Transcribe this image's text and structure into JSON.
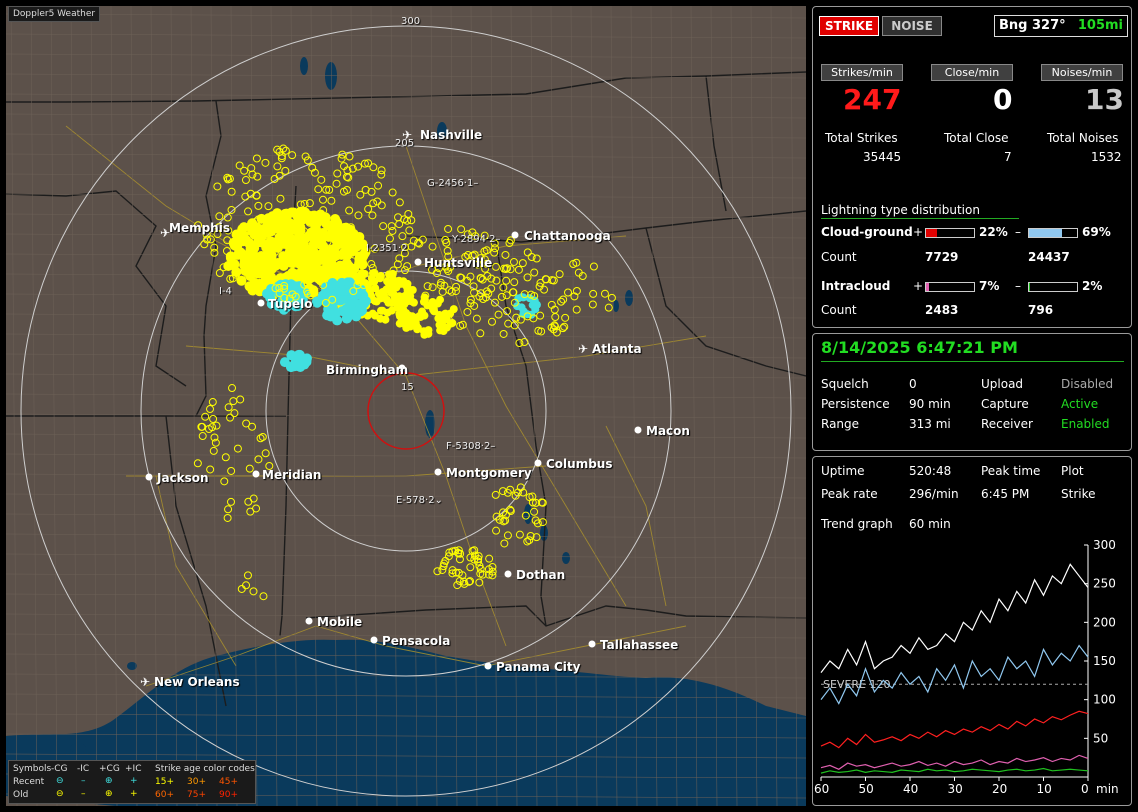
{
  "map": {
    "title": "Doppler5 Weather",
    "ring_labels": {
      "r300": "300",
      "r205": "205",
      "r15": "15"
    },
    "cities": [
      {
        "name": "Nashville",
        "icon": "airport-icon"
      },
      {
        "name": "Memphis",
        "icon": "airport-icon"
      },
      {
        "name": "Chattanooga",
        "icon": "city-dot"
      },
      {
        "name": "Huntsville",
        "icon": "city-dot"
      },
      {
        "name": "Tupelo",
        "icon": "city-dot"
      },
      {
        "name": "Atlanta",
        "icon": "airport-icon"
      },
      {
        "name": "Birmingham",
        "icon": "city-dot"
      },
      {
        "name": "Macon",
        "icon": "city-dot"
      },
      {
        "name": "Jackson",
        "icon": "city-dot"
      },
      {
        "name": "Meridian",
        "icon": "city-dot"
      },
      {
        "name": "Montgomery",
        "icon": "city-dot"
      },
      {
        "name": "Columbus",
        "icon": "city-dot"
      },
      {
        "name": "Dothan",
        "icon": "city-dot"
      },
      {
        "name": "Mobile",
        "icon": "city-dot"
      },
      {
        "name": "Pensacola",
        "icon": "city-dot"
      },
      {
        "name": "Tallahassee",
        "icon": "city-dot"
      },
      {
        "name": "Panama City",
        "icon": "city-dot"
      },
      {
        "name": "New Orleans",
        "icon": "airport-icon"
      }
    ],
    "bearing_labels": [
      "G-2456·1–",
      "Y-2894·2–",
      "F-5308·2–",
      "E-578·2⌄",
      "I-2351·2",
      "I-4"
    ],
    "legend": {
      "symbols": "Symbols",
      "minus_cg": "-CG",
      "minus_ic": "-IC",
      "plus_cg": "+CG",
      "plus_ic": "+IC",
      "codes": "Strike age color codes",
      "recent": "Recent",
      "old": "Old",
      "recent_ages": [
        "15+",
        "30+",
        "45+"
      ],
      "old_ages": [
        "60+",
        "75+",
        "90+"
      ],
      "age_colors": [
        "#ffff00",
        "#ff9900",
        "#ff5500",
        "#ff6600",
        "#ff4400",
        "#ff2200"
      ]
    },
    "colors": {
      "land": "#5c514a",
      "water": "#0a3a5c",
      "strike": "#ffff00",
      "cloud": "#40e0e0",
      "ring": "#cfcfcf",
      "close_ring": "#d01010"
    }
  },
  "status": {
    "strike_button": "STRIKE",
    "noise_button": "NOISE",
    "bearing": "Bng 327°",
    "distance": "105mi",
    "strikes_per_min_label": "Strikes/min",
    "close_per_min_label": "Close/min",
    "noises_per_min_label": "Noises/min",
    "strikes_per_min": "247",
    "close_per_min": "0",
    "noises_per_min": "13",
    "total_strikes_label": "Total Strikes",
    "total_close_label": "Total Close",
    "total_noises_label": "Total Noises",
    "total_strikes": "35445",
    "total_close": "7",
    "total_noises": "1532"
  },
  "distribution": {
    "title": "Lightning type distribution",
    "cloud_ground_label": "Cloud-ground",
    "intracloud_label": "Intracloud",
    "count_label": "Count",
    "plus_sign": "+",
    "minus_sign": "–",
    "cg_pos_pct": "22%",
    "cg_neg_pct": "69%",
    "cg_pos_count": "7729",
    "cg_neg_count": "24437",
    "ic_pos_pct": "7%",
    "ic_neg_pct": "2%",
    "ic_pos_count": "2483",
    "ic_neg_count": "796",
    "cg_pos_fill": 0.22,
    "cg_neg_fill": 0.69,
    "ic_pos_fill": 0.07,
    "ic_neg_fill": 0.02,
    "bar_colors": {
      "cg_pos": "#e00000",
      "cg_neg": "#90c8f0",
      "ic_pos": "#e060b0",
      "ic_neg": "#20c020"
    }
  },
  "settings": {
    "datetime": "8/14/2025 6:47:21 PM",
    "squelch_label": "Squelch",
    "squelch": "0",
    "persistence_label": "Persistence",
    "persistence": "90 min",
    "range_label": "Range",
    "range": "313 mi",
    "upload_label": "Upload",
    "upload": "Disabled",
    "capture_label": "Capture",
    "capture": "Active",
    "receiver_label": "Receiver",
    "receiver": "Enabled"
  },
  "trend": {
    "uptime_label": "Uptime",
    "uptime": "520:48",
    "peak_time_label": "Peak time",
    "plot_label": "Plot",
    "peak_rate_label": "Peak rate",
    "peak_rate": "296/min",
    "peak_time": "6:45 PM",
    "plot": "Strike",
    "trend_graph_label": "Trend graph",
    "trend_graph": "60 min",
    "severe_label": "SEVERE 120",
    "y_ticks": [
      "300",
      "250",
      "200",
      "150",
      "100",
      "50"
    ],
    "x_ticks": [
      "60",
      "50",
      "40",
      "30",
      "20",
      "10",
      "0"
    ],
    "x_unit": "min"
  },
  "chart_data": {
    "type": "line",
    "x": [
      60,
      58,
      56,
      54,
      52,
      50,
      48,
      46,
      44,
      42,
      40,
      38,
      36,
      34,
      32,
      30,
      28,
      26,
      24,
      22,
      20,
      18,
      16,
      14,
      12,
      10,
      8,
      6,
      4,
      2,
      0
    ],
    "xlim": [
      60,
      0
    ],
    "ylim": [
      0,
      300
    ],
    "series": [
      {
        "color": "#ffffff",
        "values": [
          135,
          150,
          140,
          165,
          145,
          175,
          140,
          150,
          155,
          170,
          160,
          180,
          165,
          170,
          185,
          175,
          200,
          190,
          215,
          200,
          230,
          215,
          240,
          225,
          255,
          235,
          260,
          250,
          275,
          260,
          245
        ]
      },
      {
        "color": "#90c8f0",
        "values": [
          100,
          115,
          95,
          120,
          105,
          140,
          110,
          125,
          115,
          135,
          120,
          130,
          110,
          140,
          125,
          145,
          115,
          150,
          130,
          140,
          125,
          155,
          140,
          150,
          130,
          165,
          145,
          160,
          150,
          170,
          155
        ]
      },
      {
        "color": "#ff2020",
        "values": [
          40,
          45,
          38,
          50,
          42,
          55,
          45,
          48,
          52,
          47,
          55,
          50,
          58,
          52,
          60,
          55,
          62,
          58,
          65,
          60,
          68,
          62,
          72,
          66,
          75,
          70,
          78,
          74,
          80,
          85,
          82
        ]
      },
      {
        "color": "#e060b0",
        "values": [
          12,
          15,
          10,
          18,
          14,
          16,
          12,
          15,
          18,
          14,
          16,
          20,
          15,
          18,
          14,
          20,
          16,
          18,
          22,
          16,
          20,
          18,
          24,
          20,
          22,
          25,
          20,
          24,
          22,
          28,
          24
        ]
      },
      {
        "color": "#20c020",
        "values": [
          5,
          8,
          6,
          7,
          9,
          6,
          8,
          7,
          6,
          9,
          8,
          7,
          10,
          8,
          9,
          7,
          8,
          10,
          9,
          8,
          7,
          9,
          10,
          8,
          9,
          11,
          8,
          9,
          10,
          9,
          8
        ]
      }
    ],
    "severe_threshold": 120
  }
}
